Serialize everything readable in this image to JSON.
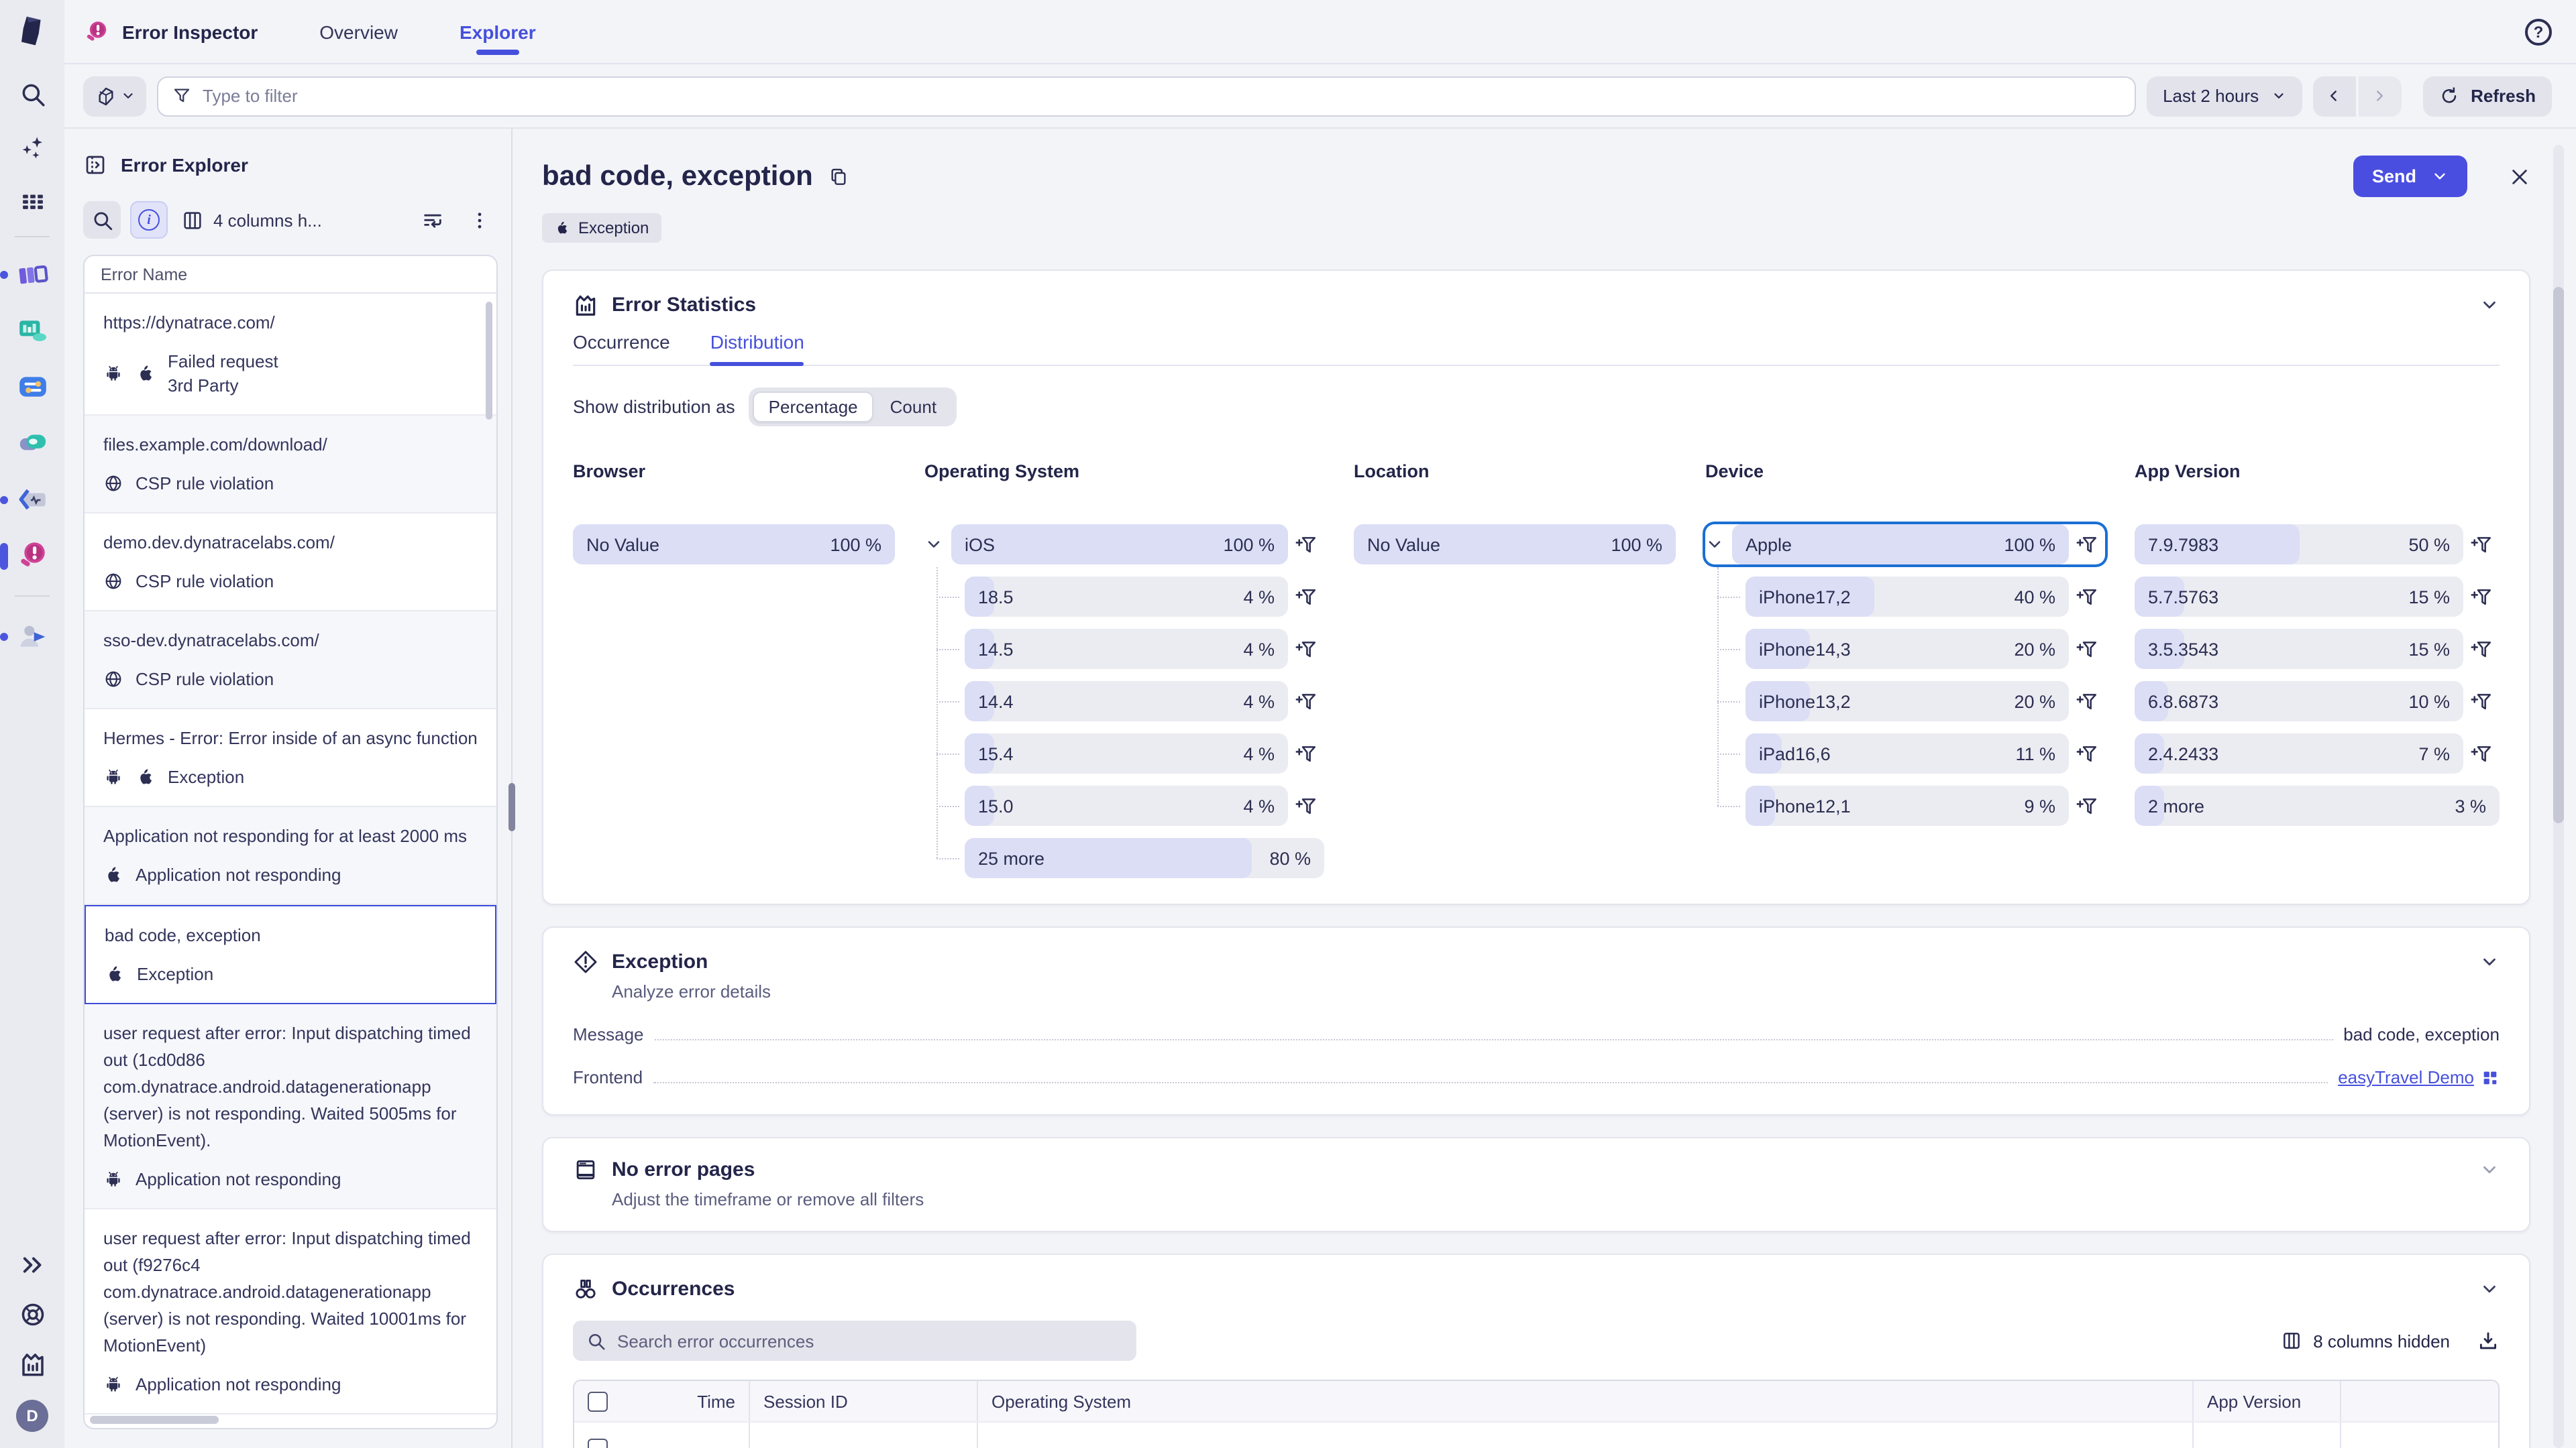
{
  "topbar": {
    "app_name": "Error Inspector",
    "tabs": [
      {
        "label": "Overview",
        "active": false
      },
      {
        "label": "Explorer",
        "active": true
      }
    ]
  },
  "filter_bar": {
    "scope_icon": "cube-icon",
    "placeholder": "Type to filter",
    "timeframe_label": "Last 2 hours",
    "refresh_label": "Refresh"
  },
  "rail": {
    "top_icons": [
      "search-icon",
      "sparkles-icon",
      "apps-grid-icon"
    ],
    "apps": [
      {
        "icon": "boxes-app-icon",
        "indicator": "dot"
      },
      {
        "icon": "analytics-app-icon",
        "indicator": "none"
      },
      {
        "icon": "toggles-app-icon",
        "indicator": "none"
      },
      {
        "icon": "services-app-icon",
        "indicator": "none"
      },
      {
        "icon": "code-app-icon",
        "indicator": "dot"
      },
      {
        "icon": "error-inspector-app-icon",
        "indicator": "active"
      },
      {
        "icon": "user-sessions-app-icon",
        "indicator": "dot",
        "divider_before": true
      }
    ],
    "bottom_icons": [
      "expand-icon",
      "help-lifebuoy-icon",
      "chart-icon"
    ],
    "avatar_label": "D"
  },
  "sidebar": {
    "title": "Error Explorer",
    "toolbar": {
      "columns_label": "4 columns h..."
    },
    "list_header": "Error Name",
    "items": [
      {
        "name": "https://dynatrace.com/",
        "platforms": [
          "android",
          "apple"
        ],
        "type_lines": [
          "Failed request",
          "3rd Party"
        ],
        "selected": false
      },
      {
        "name": "files.example.com/download/",
        "platforms": [
          "globe"
        ],
        "type_lines": [
          "CSP rule violation"
        ],
        "selected": false
      },
      {
        "name": "demo.dev.dynatracelabs.com/",
        "platforms": [
          "globe"
        ],
        "type_lines": [
          "CSP rule violation"
        ],
        "selected": false
      },
      {
        "name": "sso-dev.dynatracelabs.com/",
        "platforms": [
          "globe"
        ],
        "type_lines": [
          "CSP rule violation"
        ],
        "selected": false
      },
      {
        "name": "Hermes - Error: Error inside of an async function",
        "platforms": [
          "android",
          "apple"
        ],
        "type_lines": [
          "Exception"
        ],
        "selected": false
      },
      {
        "name": "Application not responding for at least 2000 ms",
        "platforms": [
          "apple"
        ],
        "type_lines": [
          "Application not responding"
        ],
        "selected": false
      },
      {
        "name": "bad code, exception",
        "platforms": [
          "apple"
        ],
        "type_lines": [
          "Exception"
        ],
        "selected": true
      },
      {
        "name": "user request after error: Input dispatching timed out (1cd0d86 com.dynatrace.android.datagenerationapp (server) is not responding. Waited 5005ms for MotionEvent).",
        "platforms": [
          "android"
        ],
        "type_lines": [
          "Application not responding"
        ],
        "selected": false
      },
      {
        "name": "user request after error: Input dispatching timed out (f9276c4 com.dynatrace.android.datagenerationapp (server) is not responding. Waited 10001ms for MotionEvent)",
        "platforms": [
          "android"
        ],
        "type_lines": [
          "Application not responding"
        ],
        "selected": false
      }
    ]
  },
  "main": {
    "title": "bad code, exception",
    "badge": {
      "icon": "apple-icon",
      "label": "Exception"
    },
    "send_label": "Send"
  },
  "stats": {
    "title": "Error Statistics",
    "tabs": [
      {
        "label": "Occurrence",
        "active": false
      },
      {
        "label": "Distribution",
        "active": true
      }
    ],
    "show_as_label": "Show distribution as",
    "segments": [
      {
        "label": "Percentage",
        "active": true
      },
      {
        "label": "Count",
        "active": false
      }
    ],
    "accent_color": "#4650dc",
    "bar_fill_color": "#dbdef5",
    "bar_track_color": "#ebecf1",
    "columns": [
      {
        "title": "Browser",
        "rows": [
          {
            "label": "No Value",
            "value": "100 %",
            "pct": 100
          }
        ]
      },
      {
        "title": "Operating System",
        "rows": [
          {
            "label": "iOS",
            "value": "100 %",
            "pct": 100,
            "parent": true,
            "filter": true
          },
          {
            "label": "18.5",
            "value": "4 %",
            "pct": 4,
            "child": true,
            "filter": true
          },
          {
            "label": "14.5",
            "value": "4 %",
            "pct": 4,
            "child": true,
            "filter": true
          },
          {
            "label": "14.4",
            "value": "4 %",
            "pct": 4,
            "child": true,
            "filter": true
          },
          {
            "label": "15.4",
            "value": "4 %",
            "pct": 4,
            "child": true,
            "filter": true
          },
          {
            "label": "15.0",
            "value": "4 %",
            "pct": 4,
            "child": true,
            "filter": true
          },
          {
            "label": "25 more",
            "value": "80 %",
            "pct": 80,
            "child": true,
            "more": true
          }
        ]
      },
      {
        "title": "Location",
        "rows": [
          {
            "label": "No Value",
            "value": "100 %",
            "pct": 100
          }
        ]
      },
      {
        "title": "Device",
        "rows": [
          {
            "label": "Apple",
            "value": "100 %",
            "pct": 100,
            "parent": true,
            "filter": true,
            "focused": true
          },
          {
            "label": "iPhone17,2",
            "value": "40 %",
            "pct": 40,
            "child": true,
            "filter": true
          },
          {
            "label": "iPhone14,3",
            "value": "20 %",
            "pct": 20,
            "child": true,
            "filter": true
          },
          {
            "label": "iPhone13,2",
            "value": "20 %",
            "pct": 20,
            "child": true,
            "filter": true
          },
          {
            "label": "iPad16,6",
            "value": "11 %",
            "pct": 11,
            "child": true,
            "filter": true
          },
          {
            "label": "iPhone12,1",
            "value": "9 %",
            "pct": 9,
            "child": true,
            "filter": true
          }
        ]
      },
      {
        "title": "App Version",
        "rows": [
          {
            "label": "7.9.7983",
            "value": "50 %",
            "pct": 50,
            "filter": true
          },
          {
            "label": "5.7.5763",
            "value": "15 %",
            "pct": 15,
            "filter": true
          },
          {
            "label": "3.5.3543",
            "value": "15 %",
            "pct": 15,
            "filter": true
          },
          {
            "label": "6.8.6873",
            "value": "10 %",
            "pct": 10,
            "filter": true
          },
          {
            "label": "2.4.2433",
            "value": "7 %",
            "pct": 7,
            "filter": true
          },
          {
            "label": "2 more",
            "value": "3 %",
            "pct": 3,
            "more": true
          }
        ]
      }
    ]
  },
  "exception_card": {
    "title": "Exception",
    "subtitle": "Analyze error details",
    "rows": [
      {
        "label": "Message",
        "value": "bad code, exception",
        "link": false
      },
      {
        "label": "Frontend",
        "value": "easyTravel Demo",
        "link": true
      }
    ]
  },
  "no_error_pages": {
    "title": "No error pages",
    "subtitle": "Adjust the timeframe or remove all filters"
  },
  "occurrences": {
    "title": "Occurrences",
    "search_placeholder": "Search error occurrences",
    "columns_hidden_label": "8 columns hidden",
    "table_headers": [
      "Time",
      "Session ID",
      "Operating System",
      "App Version"
    ]
  }
}
